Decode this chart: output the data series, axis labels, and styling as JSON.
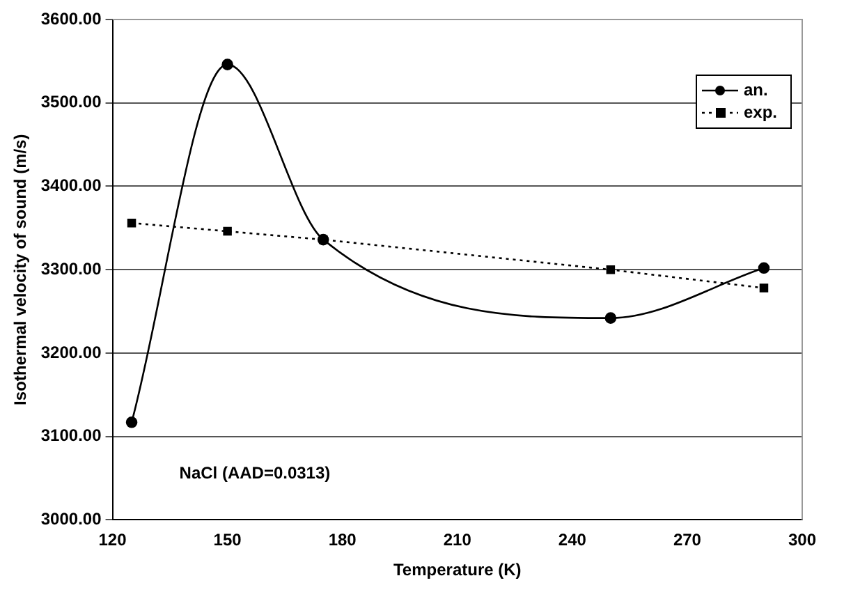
{
  "chart_data": {
    "type": "line",
    "xlabel": "Temperature (K)",
    "ylabel": "Isothermal velocity of sound (m/s)",
    "x": [
      125,
      150,
      175,
      250,
      290
    ],
    "series": [
      {
        "name": "an.",
        "color": "#000000",
        "values": [
          3117,
          3546,
          3336,
          3242,
          3302
        ],
        "marker": "circle",
        "line_style": "solid"
      },
      {
        "name": "exp.",
        "color": "#000000",
        "values": [
          3356,
          3346,
          3336,
          3300,
          3278
        ],
        "marker": "square",
        "line_style": "dotted"
      }
    ],
    "xlim": [
      120,
      300
    ],
    "xticks": [
      120,
      150,
      180,
      210,
      240,
      270,
      300
    ],
    "ylim": [
      3000,
      3600
    ],
    "yticks": [
      {
        "value": 3000,
        "label": "3000.00"
      },
      {
        "value": 3100,
        "label": "3100.00"
      },
      {
        "value": 3200,
        "label": "3200.00"
      },
      {
        "value": 3300,
        "label": "3300.00"
      },
      {
        "value": 3400,
        "label": "3400.00"
      },
      {
        "value": 3500,
        "label": "3500.00"
      },
      {
        "value": 3600,
        "label": "3600.00"
      }
    ],
    "grid": "y",
    "legend": "top right",
    "annotations": [
      "NaCl (AAD=0.0313)"
    ]
  }
}
